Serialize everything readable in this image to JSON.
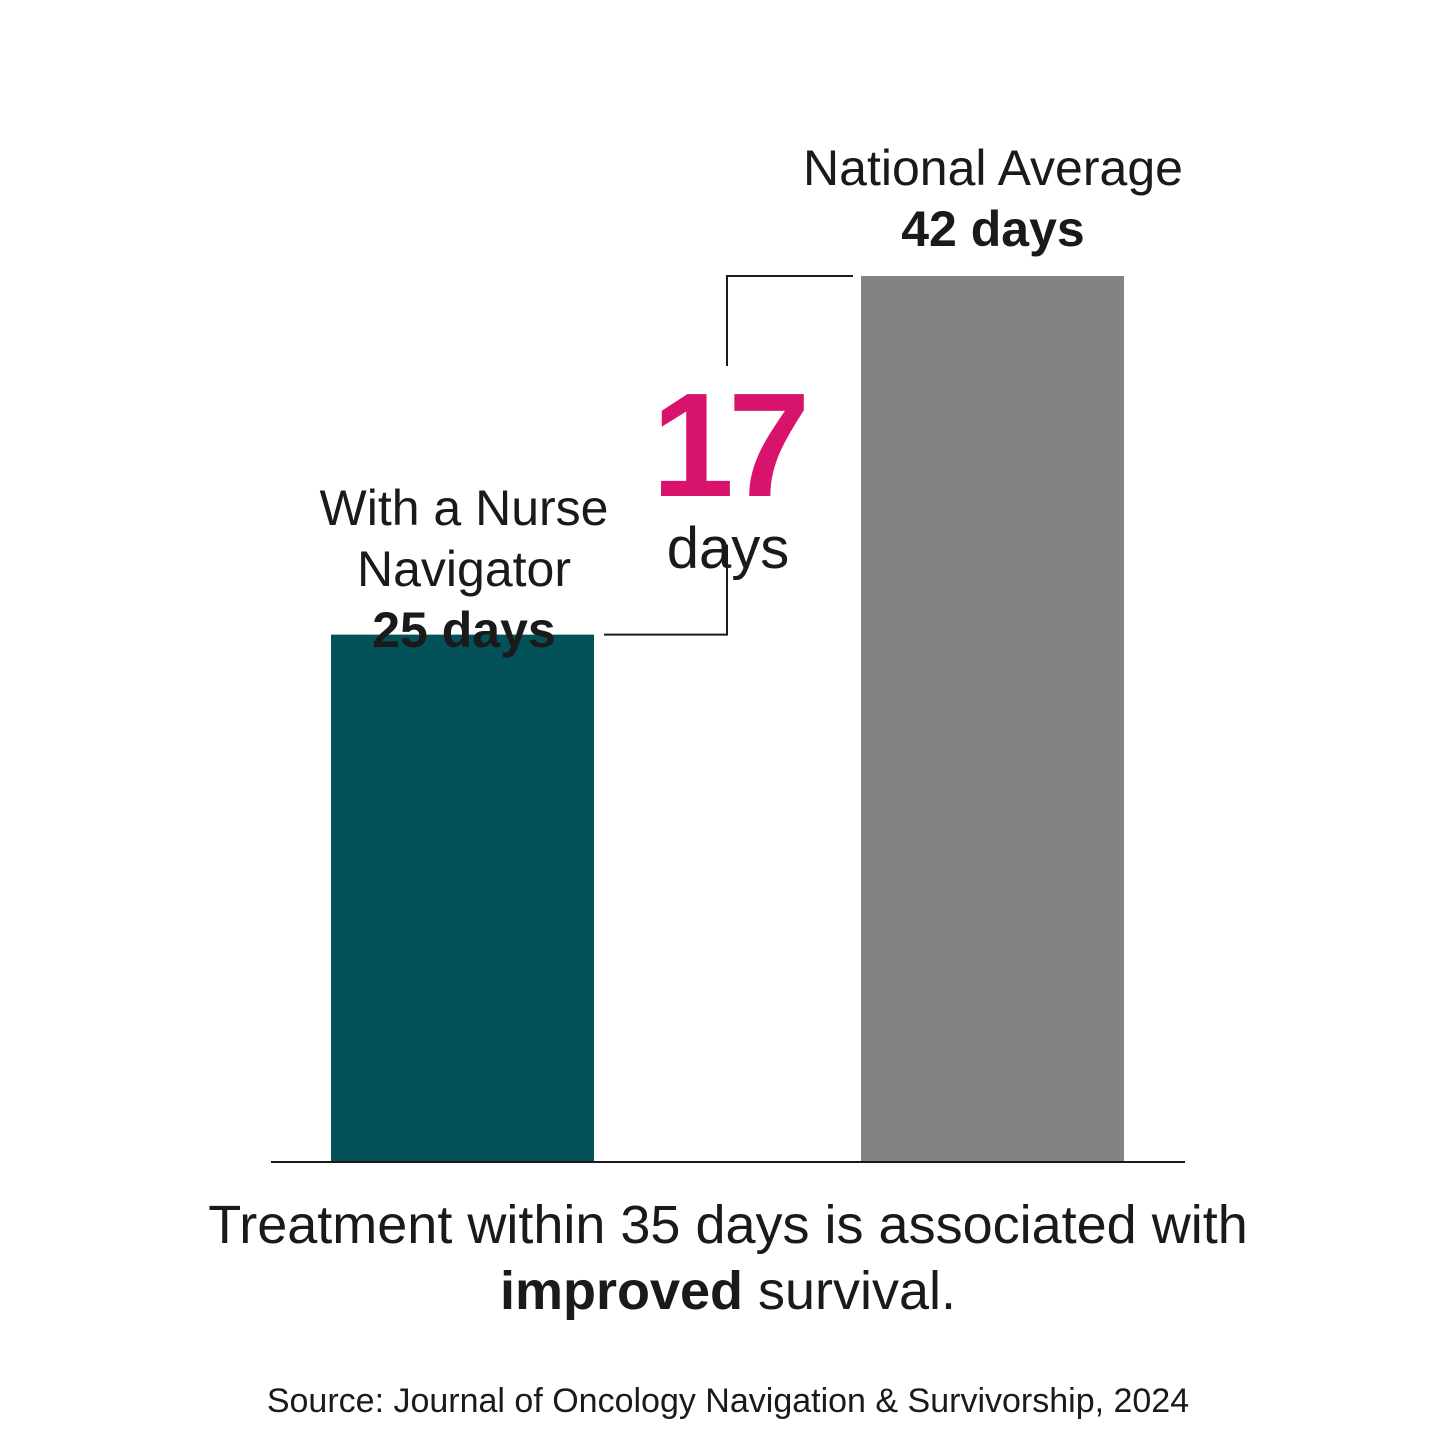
{
  "colors": {
    "navigator_bar": "#03525a",
    "national_bar": "#838383",
    "highlight": "#d8136b",
    "axis": "#1a1a1a"
  },
  "chart_data": {
    "type": "bar",
    "categories": [
      "With a Nurse Navigator",
      "National Average"
    ],
    "values": [
      25,
      42
    ],
    "value_labels": [
      "25 days",
      "42 days"
    ],
    "ylim": [
      0,
      42
    ],
    "grid": false,
    "difference": {
      "value": "17",
      "unit": "days"
    }
  },
  "caption": {
    "part1": "Treatment within 35 days is associated with ",
    "emphasis": "improved",
    "part2": " survival."
  },
  "source": "Source: Journal of Oncology Navigation & Survivorship, 2024"
}
